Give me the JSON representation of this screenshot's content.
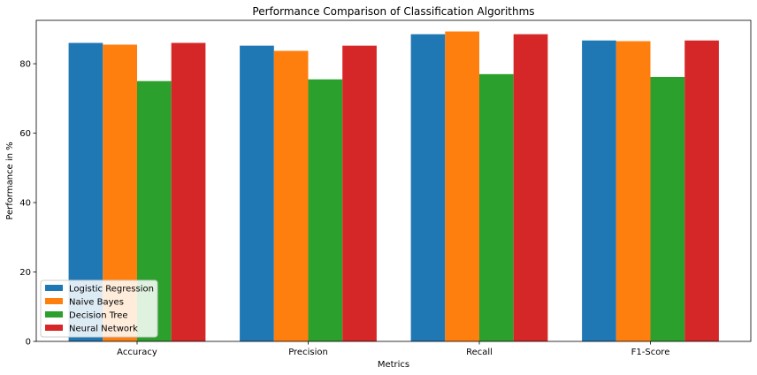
{
  "chart_data": {
    "type": "bar",
    "title": "Performance Comparison of Classification Algorithms",
    "xlabel": "Metrics",
    "ylabel": "Performance in %",
    "categories": [
      "Accuracy",
      "Precision",
      "Recall",
      "F1-Score"
    ],
    "series": [
      {
        "name": "Logistic Regression",
        "color": "#1f77b4",
        "values": [
          86.0,
          85.2,
          88.5,
          86.7
        ]
      },
      {
        "name": "Naive Bayes",
        "color": "#ff7f0e",
        "values": [
          85.5,
          83.7,
          89.3,
          86.5
        ]
      },
      {
        "name": "Decision Tree",
        "color": "#2ca02c",
        "values": [
          75.0,
          75.5,
          77.0,
          76.2
        ]
      },
      {
        "name": "Neural Network",
        "color": "#d62728",
        "values": [
          86.0,
          85.2,
          88.5,
          86.7
        ]
      }
    ],
    "ylim": [
      0,
      92.5
    ],
    "yticks": [
      0,
      20,
      40,
      60,
      80
    ],
    "grid": false,
    "legend_position": "lower-left"
  }
}
